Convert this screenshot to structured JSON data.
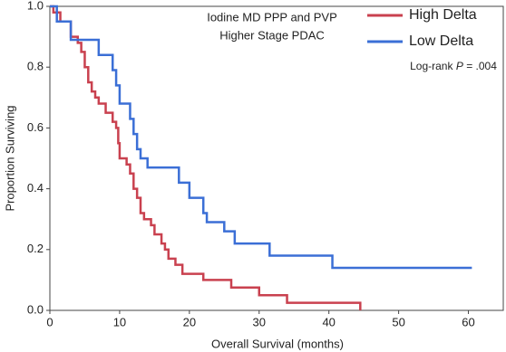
{
  "chart_data": {
    "type": "step",
    "title": [
      "Iodine MD PPP and PVP",
      "Higher Stage PDAC"
    ],
    "annotation": {
      "prefix": "Log-rank",
      "italic": "P",
      "suffix": "= .004"
    },
    "xlabel": "Overall Survival (months)",
    "ylabel": "Proportion Surviving",
    "xlim": [
      0,
      65
    ],
    "ylim": [
      0,
      1
    ],
    "xticks": [
      0,
      10,
      20,
      30,
      40,
      50,
      60
    ],
    "yticks": [
      {
        "value": 0,
        "label": "0.0"
      },
      0.2,
      0.4,
      0.6,
      0.8,
      {
        "value": 1,
        "label": "1.0"
      }
    ],
    "legend": "upper right",
    "series": [
      {
        "name": "High Delta",
        "color": "#c9414f",
        "x": [
          0,
          0.5,
          1.5,
          3,
          4,
          4.5,
          5,
          5.5,
          6,
          6.5,
          7,
          8,
          9,
          9.5,
          9.8,
          10,
          11,
          11.5,
          12,
          12.5,
          13,
          13.5,
          14.5,
          15,
          16,
          16.5,
          17,
          18,
          19,
          22,
          26,
          30,
          34,
          44.5
        ],
        "values": [
          1,
          0.98,
          0.95,
          0.9,
          0.88,
          0.85,
          0.8,
          0.75,
          0.72,
          0.7,
          0.68,
          0.65,
          0.62,
          0.6,
          0.55,
          0.5,
          0.48,
          0.45,
          0.4,
          0.37,
          0.32,
          0.3,
          0.28,
          0.25,
          0.22,
          0.2,
          0.17,
          0.15,
          0.12,
          0.1,
          0.075,
          0.05,
          0.025,
          0
        ]
      },
      {
        "name": "Low Delta",
        "color": "#3b6fd6",
        "x": [
          0,
          1,
          3,
          7,
          9,
          9.5,
          10,
          11.5,
          12,
          12.5,
          13,
          14,
          18.5,
          20,
          22,
          22.5,
          25,
          26.5,
          31.5,
          40.5,
          60.5
        ],
        "values": [
          1,
          0.95,
          0.89,
          0.84,
          0.79,
          0.74,
          0.68,
          0.63,
          0.58,
          0.53,
          0.5,
          0.47,
          0.42,
          0.37,
          0.32,
          0.29,
          0.26,
          0.22,
          0.18,
          0.14,
          0.14
        ]
      }
    ]
  }
}
